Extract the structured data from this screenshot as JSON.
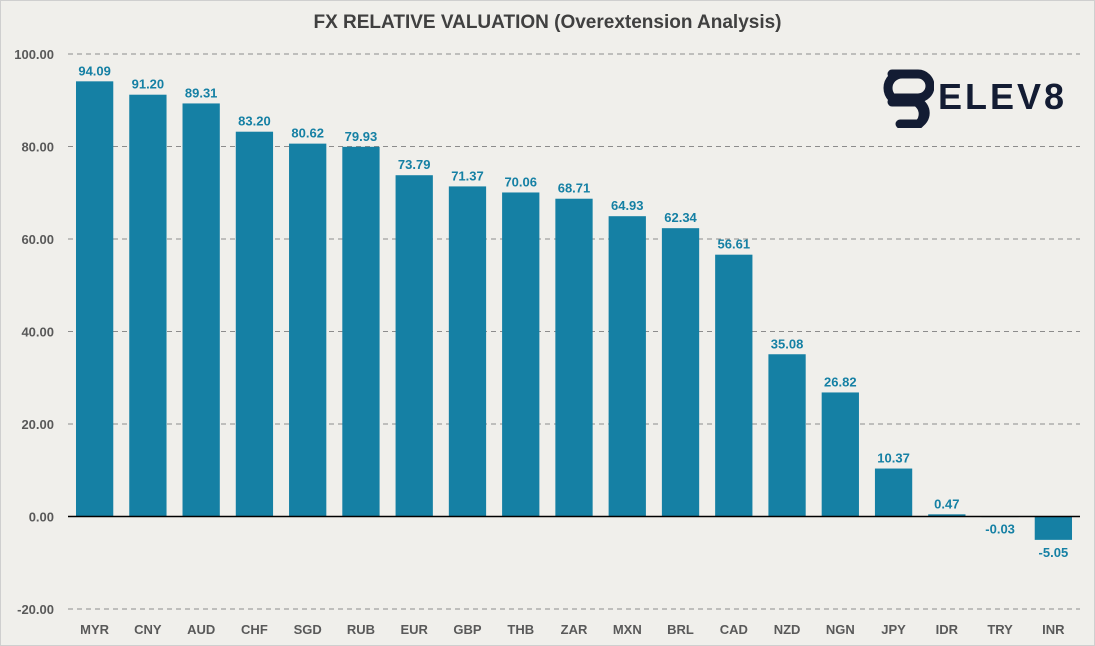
{
  "chart_data": {
    "type": "bar",
    "title": "FX RELATIVE VALUATION (Overextension Analysis)",
    "categories": [
      "MYR",
      "CNY",
      "AUD",
      "CHF",
      "SGD",
      "RUB",
      "EUR",
      "GBP",
      "THB",
      "ZAR",
      "MXN",
      "BRL",
      "CAD",
      "NZD",
      "NGN",
      "JPY",
      "IDR",
      "TRY",
      "INR"
    ],
    "values": [
      94.09,
      91.2,
      89.31,
      83.2,
      80.62,
      79.93,
      73.79,
      71.37,
      70.06,
      68.71,
      64.93,
      62.34,
      56.61,
      35.08,
      26.82,
      10.37,
      0.47,
      -0.03,
      -5.05
    ],
    "data_labels": [
      "94.09",
      "91.20",
      "89.31",
      "83.20",
      "80.62",
      "79.93",
      "73.79",
      "71.37",
      "70.06",
      "68.71",
      "64.93",
      "62.34",
      "56.61",
      "35.08",
      "26.82",
      "10.37",
      "0.47",
      "-0.03",
      "-5.05"
    ],
    "xlabel": "",
    "ylabel": "",
    "ylim": [
      -20,
      100
    ],
    "yticks": [
      -20,
      0,
      20,
      40,
      60,
      80,
      100
    ],
    "ytick_labels": [
      "-20.00",
      "0.00",
      "20.00",
      "40.00",
      "60.00",
      "80.00",
      "100.00"
    ],
    "grid": true,
    "bar_color": "#1580a4",
    "label_color": "#1580a4"
  },
  "logo": {
    "text": "ELEV8",
    "icon": "elev8-logo-icon",
    "color": "#131c33"
  }
}
